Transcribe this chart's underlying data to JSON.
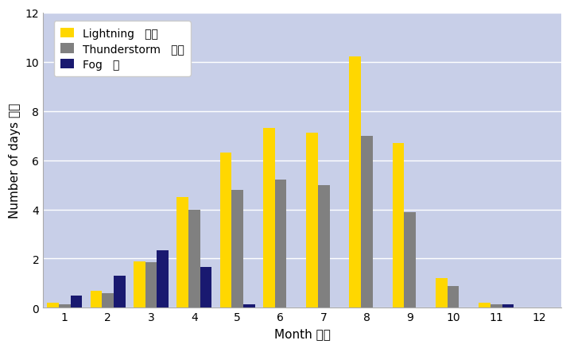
{
  "months": [
    1,
    2,
    3,
    4,
    5,
    6,
    7,
    8,
    9,
    10,
    11,
    12
  ],
  "month_labels": [
    "1",
    "2",
    "3",
    "4",
    "5",
    "6",
    "7",
    "8",
    "9",
    "10",
    "11",
    "12"
  ],
  "lightning": [
    0.2,
    0.7,
    1.9,
    4.5,
    6.3,
    7.3,
    7.1,
    10.2,
    6.7,
    1.2,
    0.2,
    0.0
  ],
  "thunderstorm": [
    0.15,
    0.6,
    1.85,
    4.0,
    4.8,
    5.2,
    5.0,
    7.0,
    3.9,
    0.9,
    0.15,
    0.0
  ],
  "fog": [
    0.5,
    1.3,
    2.35,
    1.65,
    0.15,
    0.0,
    0.0,
    0.0,
    0.0,
    0.0,
    0.15,
    0.0
  ],
  "bar_width": 0.27,
  "lightning_color": "#FFD700",
  "thunderstorm_color": "#808080",
  "fog_color": "#191970",
  "plot_bg_top": "#c8cfe8",
  "plot_bg_bottom": "#e8ecf8",
  "fig_bg": "#ffffff",
  "legend_bg": "#ffffff",
  "ylabel": "Number of days 日數",
  "xlabel": "Month 月份",
  "ylim": [
    0,
    12
  ],
  "yticks": [
    0,
    2,
    4,
    6,
    8,
    10,
    12
  ],
  "legend_labels": [
    "Lightning   闪電",
    "Thunderstorm   雷暴",
    "Fog   霧"
  ],
  "axis_fontsize": 11,
  "tick_fontsize": 10,
  "legend_fontsize": 10
}
